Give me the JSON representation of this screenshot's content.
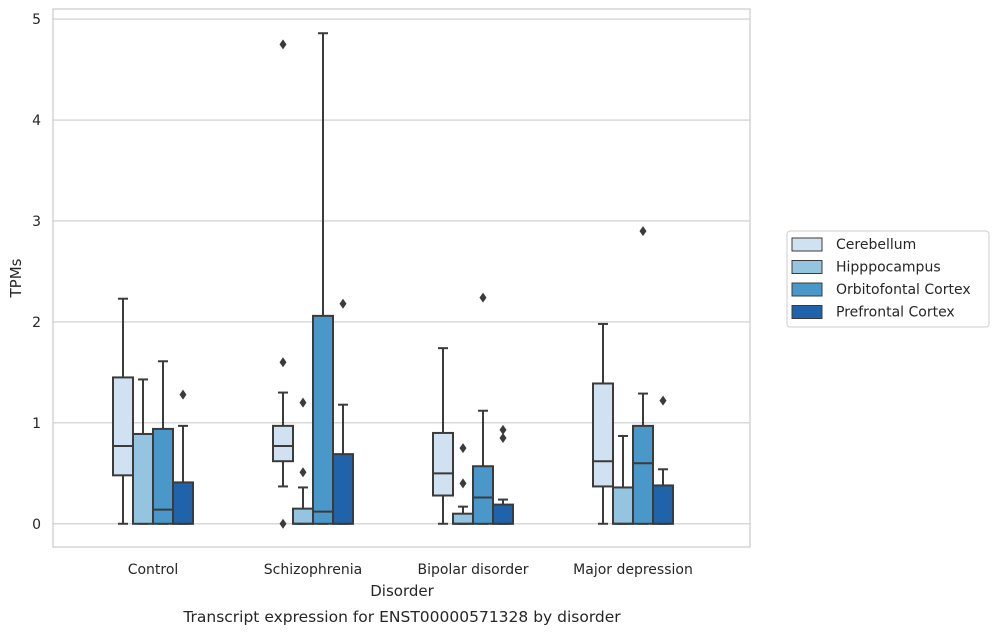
{
  "chart_data": {
    "type": "box",
    "title": "",
    "caption": "Transcript expression for ENST00000571328 by disorder",
    "xlabel": "Disorder",
    "ylabel": "TPMs",
    "ylim": [
      -0.23,
      5.1
    ],
    "yticks": [
      "0",
      "1",
      "2",
      "3",
      "4",
      "5"
    ],
    "grid": true,
    "legend_position": "right",
    "categories": [
      "Control",
      "Schizophrenia",
      "Bipolar disorder",
      "Major depression"
    ],
    "series": [
      {
        "name": "Cerebellum",
        "color": "#d0e1f2",
        "boxes": [
          {
            "min": 0.0,
            "q1": 0.48,
            "median": 0.77,
            "q3": 1.45,
            "max": 2.23,
            "outliers": []
          },
          {
            "min": 0.37,
            "q1": 0.62,
            "median": 0.77,
            "q3": 0.97,
            "max": 1.3,
            "outliers": [
              1.6,
              4.75,
              0.0
            ]
          },
          {
            "min": 0.0,
            "q1": 0.28,
            "median": 0.5,
            "q3": 0.9,
            "max": 1.74,
            "outliers": []
          },
          {
            "min": 0.0,
            "q1": 0.37,
            "median": 0.62,
            "q3": 1.39,
            "max": 1.98,
            "outliers": []
          }
        ]
      },
      {
        "name": "Hipppocampus",
        "color": "#94c4df",
        "boxes": [
          {
            "min": 0.0,
            "q1": 0.0,
            "median": 0.89,
            "q3": 0.89,
            "max": 1.43,
            "outliers": []
          },
          {
            "min": 0.0,
            "q1": 0.0,
            "median": 0.0,
            "q3": 0.15,
            "max": 0.36,
            "outliers": [
              1.2,
              0.51
            ]
          },
          {
            "min": 0.0,
            "q1": 0.0,
            "median": 0.0,
            "q3": 0.1,
            "max": 0.17,
            "outliers": [
              0.75,
              0.4
            ]
          },
          {
            "min": 0.0,
            "q1": 0.0,
            "median": 0.0,
            "q3": 0.36,
            "max": 0.87,
            "outliers": []
          }
        ]
      },
      {
        "name": "Orbitofontal Cortex",
        "color": "#4a98c9",
        "boxes": [
          {
            "min": 0.0,
            "q1": 0.0,
            "median": 0.14,
            "q3": 0.94,
            "max": 1.61,
            "outliers": []
          },
          {
            "min": 0.0,
            "q1": 0.0,
            "median": 0.12,
            "q3": 2.06,
            "max": 4.86,
            "outliers": []
          },
          {
            "min": 0.0,
            "q1": 0.0,
            "median": 0.26,
            "q3": 0.57,
            "max": 1.12,
            "outliers": [
              2.24
            ]
          },
          {
            "min": 0.0,
            "q1": 0.0,
            "median": 0.6,
            "q3": 0.97,
            "max": 1.29,
            "outliers": [
              2.9
            ]
          }
        ]
      },
      {
        "name": "Prefrontal Cortex",
        "color": "#2163aa",
        "boxes": [
          {
            "min": 0.0,
            "q1": 0.0,
            "median": 0.0,
            "q3": 0.41,
            "max": 0.97,
            "outliers": [
              1.28
            ]
          },
          {
            "min": 0.0,
            "q1": 0.0,
            "median": 0.0,
            "q3": 0.69,
            "max": 1.18,
            "outliers": [
              2.18
            ]
          },
          {
            "min": 0.0,
            "q1": 0.0,
            "median": 0.0,
            "q3": 0.19,
            "max": 0.24,
            "outliers": [
              0.93,
              0.85
            ]
          },
          {
            "min": 0.0,
            "q1": 0.0,
            "median": 0.0,
            "q3": 0.38,
            "max": 0.54,
            "outliers": [
              1.22
            ]
          }
        ]
      }
    ]
  },
  "style": {
    "box_edge_color": "#3b3b3b",
    "grid_color": "#cccccc",
    "frame_color": "#cccccc"
  }
}
